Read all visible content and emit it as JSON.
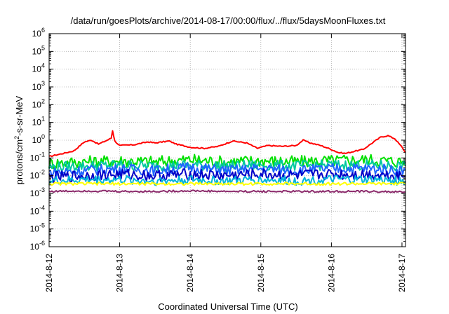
{
  "chart_data": {
    "type": "line",
    "title": "/data/run/goesPlots/archive/2014-08-17/00:00/flux/../flux/5daysMoonFluxes.txt",
    "xlabel": "Coordinated Universal Time (UTC)",
    "ylabel": "protons/cm²-s-sr-MeV",
    "ylabel_parts": {
      "base": "protons/cm",
      "sup": "2",
      "rest": "-s-sr-MeV"
    },
    "y_scale": "log",
    "ylim_exp": [
      -6,
      6
    ],
    "y_ticks": [
      {
        "exp": -6,
        "label_base": "10",
        "label_sup": "-6"
      },
      {
        "exp": -5,
        "label_base": "10",
        "label_sup": "-5"
      },
      {
        "exp": -4,
        "label_base": "10",
        "label_sup": "-4"
      },
      {
        "exp": -3,
        "label_base": "10",
        "label_sup": "-3"
      },
      {
        "exp": -2,
        "label_base": "10",
        "label_sup": "-2"
      },
      {
        "exp": -1,
        "label_base": "10",
        "label_sup": "-1"
      },
      {
        "exp": 0,
        "label_base": "10",
        "label_sup": "0"
      },
      {
        "exp": 1,
        "label_base": "10",
        "label_sup": "1"
      },
      {
        "exp": 2,
        "label_base": "10",
        "label_sup": "2"
      },
      {
        "exp": 3,
        "label_base": "10",
        "label_sup": "3"
      },
      {
        "exp": 4,
        "label_base": "10",
        "label_sup": "4"
      },
      {
        "exp": 5,
        "label_base": "10",
        "label_sup": "5"
      },
      {
        "exp": 6,
        "label_base": "10",
        "label_sup": "6"
      }
    ],
    "x_ticks": [
      "2014-8-12",
      "2014-8-13",
      "2014-8-14",
      "2014-8-15",
      "2014-8-16",
      "2014-8-17"
    ],
    "xlim_days": [
      0,
      5.05
    ],
    "grid": true,
    "legend": "none",
    "series": [
      {
        "color": "#ff0000",
        "points": [
          [
            0,
            0.12
          ],
          [
            0.2,
            0.18
          ],
          [
            0.35,
            0.25
          ],
          [
            0.5,
            0.8
          ],
          [
            0.6,
            1.0
          ],
          [
            0.7,
            0.6
          ],
          [
            0.8,
            0.9
          ],
          [
            0.88,
            1.3
          ],
          [
            0.9,
            3.5
          ],
          [
            0.93,
            0.9
          ],
          [
            1.0,
            0.5
          ],
          [
            1.2,
            0.55
          ],
          [
            1.4,
            0.8
          ],
          [
            1.5,
            0.7
          ],
          [
            1.7,
            0.9
          ],
          [
            1.8,
            0.6
          ],
          [
            2.0,
            0.4
          ],
          [
            2.2,
            0.35
          ],
          [
            2.4,
            0.45
          ],
          [
            2.6,
            0.9
          ],
          [
            2.8,
            0.7
          ],
          [
            2.95,
            0.35
          ],
          [
            3.1,
            0.5
          ],
          [
            3.3,
            0.45
          ],
          [
            3.5,
            0.5
          ],
          [
            3.6,
            1.0
          ],
          [
            3.7,
            0.7
          ],
          [
            3.85,
            0.5
          ],
          [
            4.0,
            0.3
          ],
          [
            4.1,
            0.2
          ],
          [
            4.2,
            0.18
          ],
          [
            4.35,
            0.25
          ],
          [
            4.45,
            0.3
          ],
          [
            4.6,
            0.8
          ],
          [
            4.7,
            1.5
          ],
          [
            4.8,
            1.8
          ],
          [
            4.9,
            1.2
          ],
          [
            5.0,
            0.4
          ],
          [
            5.05,
            0.2
          ]
        ]
      },
      {
        "color": "#00e000",
        "points": [
          [
            0,
            0.05
          ],
          [
            0.5,
            0.06
          ],
          [
            1.0,
            0.07
          ],
          [
            1.5,
            0.06
          ],
          [
            2.0,
            0.08
          ],
          [
            2.5,
            0.06
          ],
          [
            3.0,
            0.07
          ],
          [
            3.5,
            0.06
          ],
          [
            4.0,
            0.07
          ],
          [
            4.5,
            0.08
          ],
          [
            5.05,
            0.06
          ]
        ]
      },
      {
        "color": "#00c8a0",
        "points": [
          [
            0,
            0.03
          ],
          [
            0.5,
            0.035
          ],
          [
            1.0,
            0.04
          ],
          [
            1.5,
            0.035
          ],
          [
            2.0,
            0.04
          ],
          [
            2.5,
            0.035
          ],
          [
            3.0,
            0.04
          ],
          [
            3.5,
            0.035
          ],
          [
            4.0,
            0.04
          ],
          [
            4.5,
            0.04
          ],
          [
            5.05,
            0.035
          ]
        ]
      },
      {
        "color": "#1e64ff",
        "points": [
          [
            0,
            0.015
          ],
          [
            0.5,
            0.02
          ],
          [
            1.0,
            0.025
          ],
          [
            1.5,
            0.02
          ],
          [
            2.0,
            0.03
          ],
          [
            2.5,
            0.02
          ],
          [
            3.0,
            0.025
          ],
          [
            3.5,
            0.02
          ],
          [
            4.0,
            0.025
          ],
          [
            4.5,
            0.025
          ],
          [
            5.05,
            0.02
          ]
        ]
      },
      {
        "color": "#0000c8",
        "points": [
          [
            0,
            0.008
          ],
          [
            0.5,
            0.01
          ],
          [
            1.0,
            0.012
          ],
          [
            1.5,
            0.01
          ],
          [
            2.0,
            0.012
          ],
          [
            2.5,
            0.01
          ],
          [
            3.0,
            0.012
          ],
          [
            3.5,
            0.01
          ],
          [
            4.0,
            0.012
          ],
          [
            4.5,
            0.012
          ],
          [
            5.05,
            0.01
          ]
        ]
      },
      {
        "color": "#00b4dc",
        "points": [
          [
            0,
            0.005
          ],
          [
            0.5,
            0.006
          ],
          [
            1.0,
            0.006
          ],
          [
            1.5,
            0.005
          ],
          [
            2.0,
            0.006
          ],
          [
            2.5,
            0.005
          ],
          [
            3.0,
            0.006
          ],
          [
            3.5,
            0.005
          ],
          [
            4.0,
            0.006
          ],
          [
            4.5,
            0.006
          ],
          [
            5.05,
            0.005
          ]
        ]
      },
      {
        "color": "#ffff00",
        "points": [
          [
            0,
            0.0035
          ],
          [
            1.0,
            0.0035
          ],
          [
            2.0,
            0.0035
          ],
          [
            3.0,
            0.0035
          ],
          [
            4.0,
            0.0035
          ],
          [
            5.05,
            0.0035
          ]
        ]
      },
      {
        "color": "#8b2a6b",
        "points": [
          [
            0,
            0.0013
          ],
          [
            0.5,
            0.0014
          ],
          [
            1.0,
            0.0013
          ],
          [
            1.5,
            0.0013
          ],
          [
            2.0,
            0.0014
          ],
          [
            2.5,
            0.0013
          ],
          [
            3.0,
            0.0013
          ],
          [
            3.5,
            0.0013
          ],
          [
            4.0,
            0.0013
          ],
          [
            4.5,
            0.0013
          ],
          [
            5.05,
            0.0012
          ]
        ]
      }
    ]
  }
}
